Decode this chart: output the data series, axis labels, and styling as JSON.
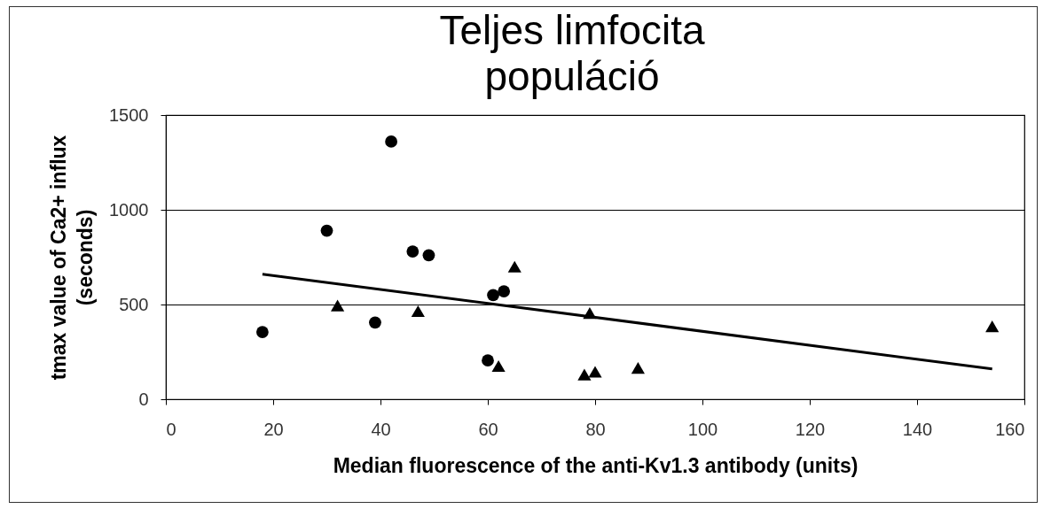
{
  "chart_data": {
    "type": "scatter",
    "title": "Teljes limfocita\npopuláció",
    "xlabel": "Median fluorescence of the anti-Kv1.3 antibody (units)",
    "ylabel": "tmax value of Ca2+ influx\n(seconds)",
    "xlim": [
      0,
      160
    ],
    "xticks": [
      0,
      20,
      40,
      60,
      80,
      100,
      120,
      140,
      160
    ],
    "ylim": [
      0,
      1500
    ],
    "yticks": [
      0,
      500,
      1000,
      1500
    ],
    "grid": "y",
    "series": [
      {
        "marker": "circle",
        "color": "#000000",
        "x": [
          18,
          30,
          39,
          42,
          46,
          49,
          60,
          61,
          63
        ],
        "values": [
          355,
          890,
          405,
          1360,
          780,
          760,
          205,
          550,
          570
        ]
      },
      {
        "marker": "triangle",
        "color": "#000000",
        "x": [
          32,
          47,
          62,
          65,
          78,
          79,
          80,
          88,
          154
        ],
        "values": [
          495,
          465,
          175,
          700,
          130,
          455,
          145,
          165,
          385
        ]
      },
      {
        "type": "line",
        "marker": "none",
        "line_style": "solid",
        "color": "#000000",
        "x": [
          18,
          154
        ],
        "values": [
          660,
          160
        ]
      }
    ]
  }
}
